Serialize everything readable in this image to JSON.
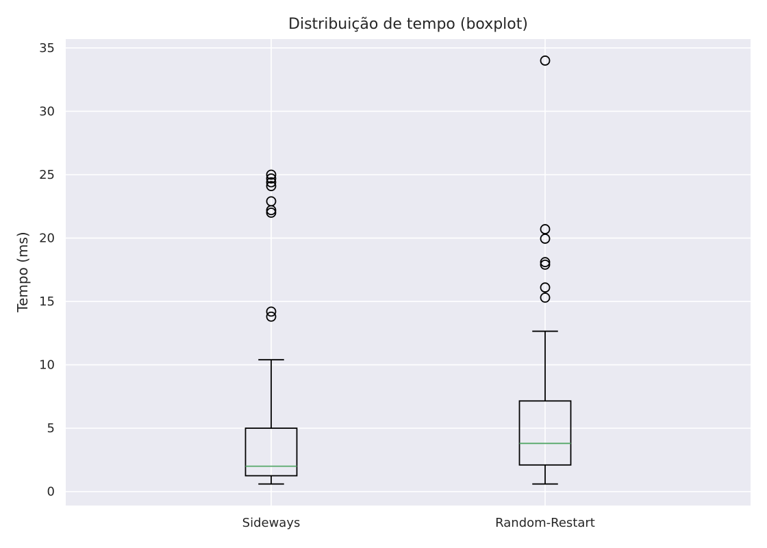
{
  "chart_data": {
    "type": "boxplot",
    "title": "Distribuição de tempo (boxplot)",
    "xlabel": "",
    "ylabel": "Tempo (ms)",
    "ylim": [
      -1.1,
      35.7
    ],
    "yticks": [
      0,
      5,
      10,
      15,
      20,
      25,
      30,
      35
    ],
    "grid": true,
    "colors": {
      "plot_background": "#eaeaf2",
      "grid": "#ffffff",
      "box": "#000000",
      "median": "#55a868",
      "text": "#262626"
    },
    "categories": [
      "Sideways",
      "Random-Restart"
    ],
    "boxes": [
      {
        "category": "Sideways",
        "whisker_low": 0.6,
        "q1": 1.25,
        "median": 2.0,
        "q3": 5.0,
        "whisker_high": 10.4,
        "outliers": [
          13.8,
          14.2,
          22.0,
          22.2,
          22.9,
          24.1,
          24.4,
          24.7,
          25.0
        ]
      },
      {
        "category": "Random-Restart",
        "whisker_low": 0.6,
        "q1": 2.1,
        "median": 3.8,
        "q3": 7.15,
        "whisker_high": 12.65,
        "outliers": [
          15.3,
          16.1,
          17.9,
          18.1,
          19.95,
          20.7,
          34.0
        ]
      }
    ]
  }
}
